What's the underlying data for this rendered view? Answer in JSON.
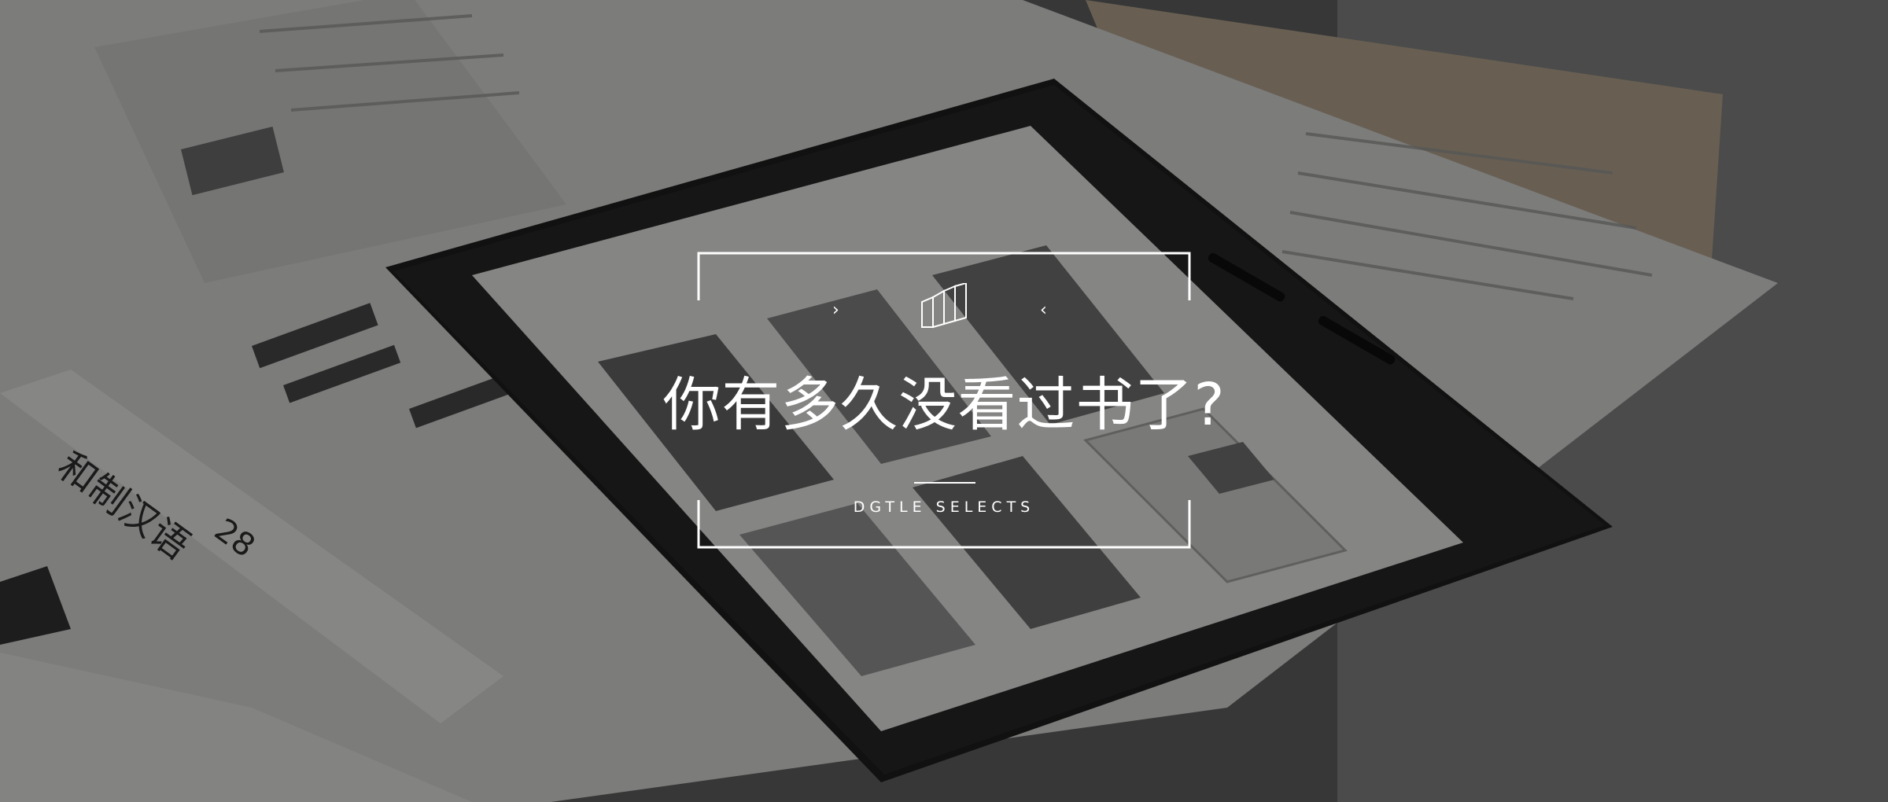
{
  "banner": {
    "title": "你有多久没看过书了?",
    "subtitle": "DGTLE SELECTS",
    "logo_icon": "dgtle-books-logo-icon",
    "chevron_left_icon": "chevron-right-icon",
    "chevron_right_icon": "chevron-left-icon",
    "chevron_left_glyph": "›",
    "chevron_right_glyph": "‹",
    "overlay_color": "#000000",
    "text_color": "#ffffff"
  },
  "background_photo": {
    "description_icon": "kindle-on-open-books-photo",
    "book_spine_text": "和制汉语",
    "book_spine_number": "28"
  }
}
